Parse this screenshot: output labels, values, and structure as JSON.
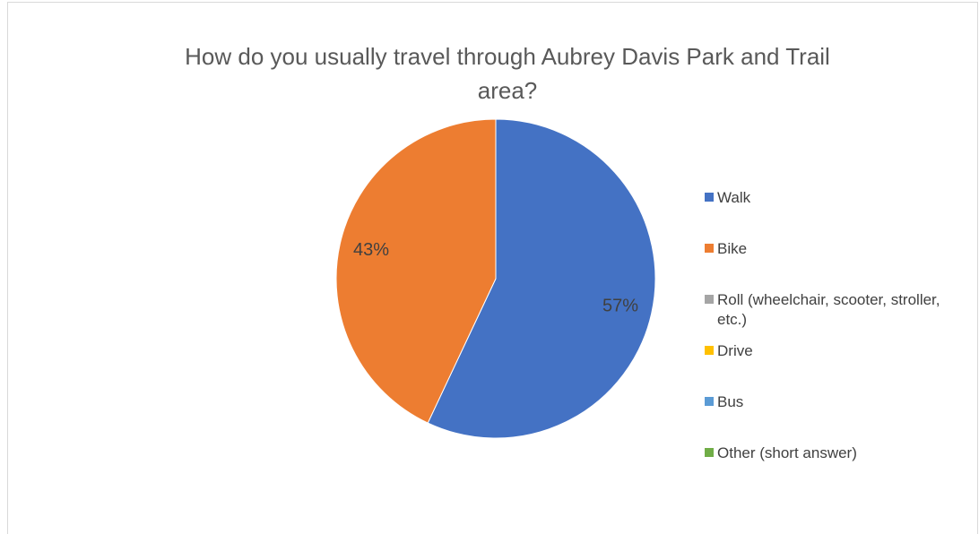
{
  "chart_data": {
    "type": "pie",
    "title": "How do you usually travel through Aubrey Davis Park and Trail area?",
    "categories": [
      "Walk",
      "Bike",
      "Roll (wheelchair, scooter, stroller, etc.)",
      "Drive",
      "Bus",
      "Other (short answer)"
    ],
    "values": [
      57,
      43,
      0,
      0,
      0,
      0
    ],
    "value_labels": [
      "57%",
      "43%",
      null,
      null,
      null,
      null
    ],
    "colors": [
      "#4472c4",
      "#ed7d31",
      "#a5a5a5",
      "#ffc000",
      "#5b9bd5",
      "#70ad47"
    ],
    "legend": "right"
  }
}
